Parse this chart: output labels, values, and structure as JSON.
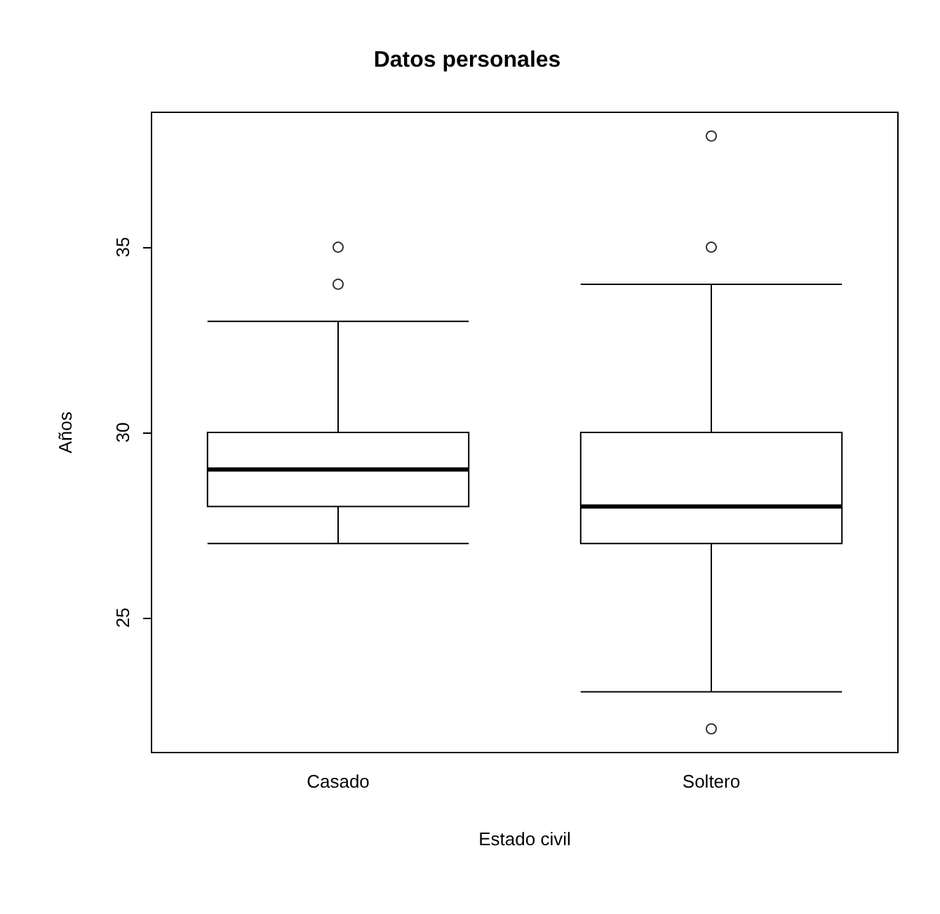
{
  "chart_data": {
    "type": "box",
    "title": "Datos personales",
    "xlabel": "Estado civil",
    "ylabel": "Años",
    "categories": [
      "Casado",
      "Soltero"
    ],
    "boxes": [
      {
        "low": 27,
        "q1": 28,
        "median": 29,
        "q3": 30,
        "high": 33,
        "outliers": [
          34,
          35
        ]
      },
      {
        "low": 23,
        "q1": 27,
        "median": 28,
        "q3": 30,
        "high": 34,
        "outliers": [
          22,
          35,
          38
        ]
      }
    ],
    "color": "#000000",
    "ylim": [
      21.36,
      38.64
    ],
    "yticks": [
      25,
      30,
      35
    ],
    "grid": false,
    "marker": "circle"
  }
}
